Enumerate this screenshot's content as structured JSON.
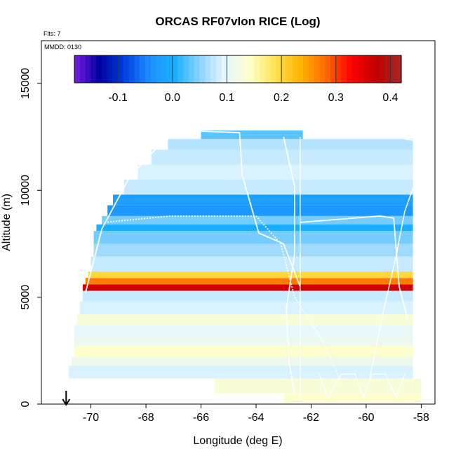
{
  "chart_data": {
    "type": "heatmap",
    "title": "ORCAS RF07vlon RICE (Log)",
    "annotations": [
      "Flts: 7",
      "MMDD: 0130"
    ],
    "xlabel": "Longitude (deg E)",
    "ylabel": "Altitude (m)",
    "xlim": [
      -71.8,
      -57.5
    ],
    "ylim": [
      0,
      17000
    ],
    "x_ticks": [
      -70,
      -68,
      -66,
      -64,
      -62,
      -60,
      -58
    ],
    "x_tick_labels": [
      "-70",
      "-68",
      "-66",
      "-64",
      "-62",
      "-60",
      "-58"
    ],
    "y_ticks": [
      0,
      5000,
      10000,
      15000
    ],
    "y_tick_labels": [
      "0",
      "5000",
      "10000",
      "15000"
    ],
    "colorbar": {
      "range": [
        -0.18,
        0.42
      ],
      "ticks": [
        -0.1,
        0.0,
        0.1,
        0.2,
        0.3,
        0.4
      ],
      "tick_labels": [
        "-0.1",
        "0.0",
        "0.1",
        "0.2",
        "0.3",
        "0.4"
      ],
      "placement": "top-inside",
      "colors": [
        "#7a1fe6",
        "#0000a0",
        "#0040e0",
        "#1e90ff",
        "#1ab0ff",
        "#8fd4ff",
        "#e6f7ff",
        "#ffffc8",
        "#ffe24d",
        "#ffb300",
        "#ff6a00",
        "#ff0000",
        "#c00000",
        "#a52a2a"
      ]
    },
    "marker_longitude": -70.9,
    "layers": [
      {
        "alt": [
          100,
          500
        ],
        "lon": [
          -63.0,
          -58.0
        ],
        "value": 0.14
      },
      {
        "alt": [
          500,
          1200
        ],
        "lon": [
          -65.5,
          -58.0
        ],
        "value": 0.13
      },
      {
        "alt": [
          1200,
          1800
        ],
        "lon": [
          -70.8,
          -58.3
        ],
        "value": 0.09
      },
      {
        "alt": [
          1800,
          2200
        ],
        "lon": [
          -70.7,
          -58.3
        ],
        "value": 0.11
      },
      {
        "alt": [
          2200,
          2700
        ],
        "lon": [
          -70.6,
          -58.3
        ],
        "value": 0.14
      },
      {
        "alt": [
          2700,
          3200
        ],
        "lon": [
          -70.6,
          -58.3
        ],
        "value": 0.11
      },
      {
        "alt": [
          3200,
          3700
        ],
        "lon": [
          -70.6,
          -58.3
        ],
        "value": 0.1
      },
      {
        "alt": [
          3700,
          4200
        ],
        "lon": [
          -70.5,
          -58.3
        ],
        "value": 0.13
      },
      {
        "alt": [
          4200,
          4800
        ],
        "lon": [
          -70.4,
          -58.3
        ],
        "value": 0.09
      },
      {
        "alt": [
          4800,
          5300
        ],
        "lon": [
          -70.3,
          -58.3
        ],
        "value": 0.08
      },
      {
        "alt": [
          5300,
          5600
        ],
        "lon": [
          -70.3,
          -58.3
        ],
        "value": 0.36
      },
      {
        "alt": [
          5600,
          5900
        ],
        "lon": [
          -70.2,
          -58.3
        ],
        "value": 0.27
      },
      {
        "alt": [
          5900,
          6200
        ],
        "lon": [
          -70.1,
          -58.3
        ],
        "value": 0.2
      },
      {
        "alt": [
          6200,
          6900
        ],
        "lon": [
          -70.0,
          -58.3
        ],
        "value": 0.08
      },
      {
        "alt": [
          6900,
          7500
        ],
        "lon": [
          -69.9,
          -58.3
        ],
        "value": 0.06
      },
      {
        "alt": [
          7500,
          8100
        ],
        "lon": [
          -69.9,
          -58.3
        ],
        "value": 0.04
      },
      {
        "alt": [
          8100,
          8400
        ],
        "lon": [
          -69.8,
          -58.3
        ],
        "value": 0.0
      },
      {
        "alt": [
          8400,
          8800
        ],
        "lon": [
          -69.6,
          -58.3
        ],
        "value": 0.04
      },
      {
        "alt": [
          8800,
          9300
        ],
        "lon": [
          -69.4,
          -58.3
        ],
        "value": -0.03
      },
      {
        "alt": [
          9300,
          9800
        ],
        "lon": [
          -69.2,
          -58.3
        ],
        "value": -0.02
      },
      {
        "alt": [
          9800,
          10500
        ],
        "lon": [
          -68.8,
          -58.3
        ],
        "value": 0.08
      },
      {
        "alt": [
          10500,
          11200
        ],
        "lon": [
          -68.3,
          -58.3
        ],
        "value": 0.09
      },
      {
        "alt": [
          11200,
          11900
        ],
        "lon": [
          -67.8,
          -58.3
        ],
        "value": 0.08
      },
      {
        "alt": [
          11900,
          12400
        ],
        "lon": [
          -67.2,
          -58.3
        ],
        "value": 0.07
      },
      {
        "alt": [
          12400,
          12800
        ],
        "lon": [
          -66.0,
          -62.3
        ],
        "value": 0.03
      }
    ]
  }
}
